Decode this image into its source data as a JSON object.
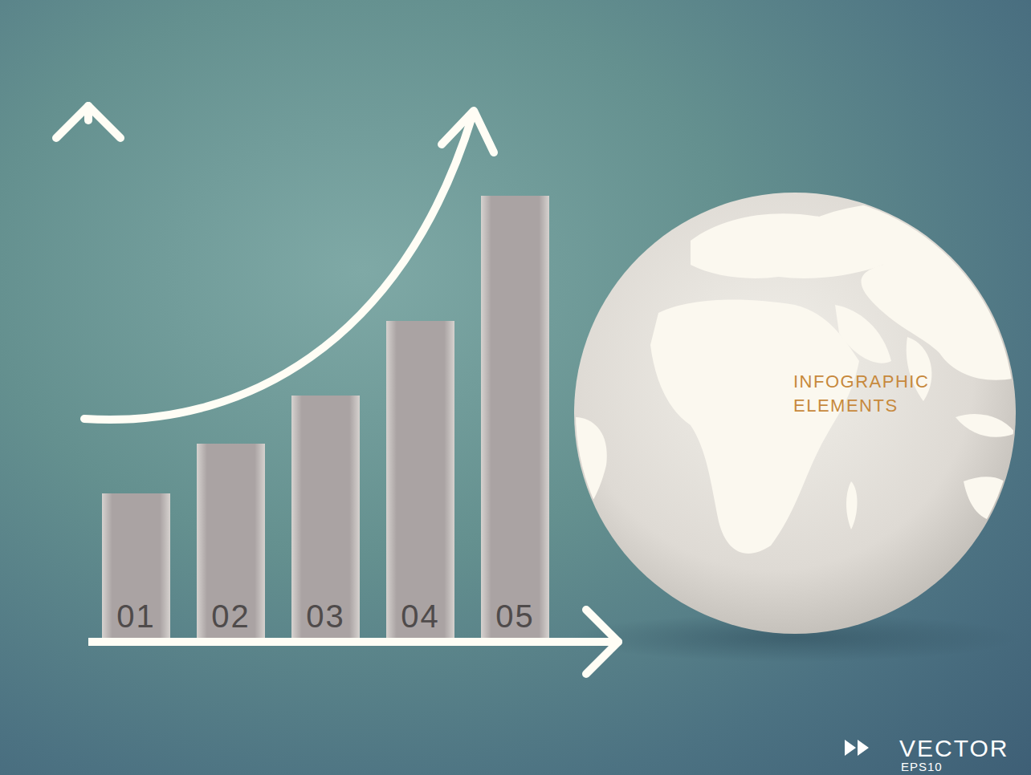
{
  "chart_data": {
    "type": "bar",
    "categories": [
      "01",
      "02",
      "03",
      "04",
      "05"
    ],
    "values": [
      185,
      247,
      307,
      400,
      556
    ],
    "color": "#aaa3a3",
    "ylim": [
      0,
      650
    ],
    "tick_labels": false
  },
  "annotations": {
    "globe_label": [
      "INFOGRAPHIC",
      "ELEMENTS"
    ],
    "watermark": [
      "VECTOR",
      "EPS10"
    ]
  }
}
